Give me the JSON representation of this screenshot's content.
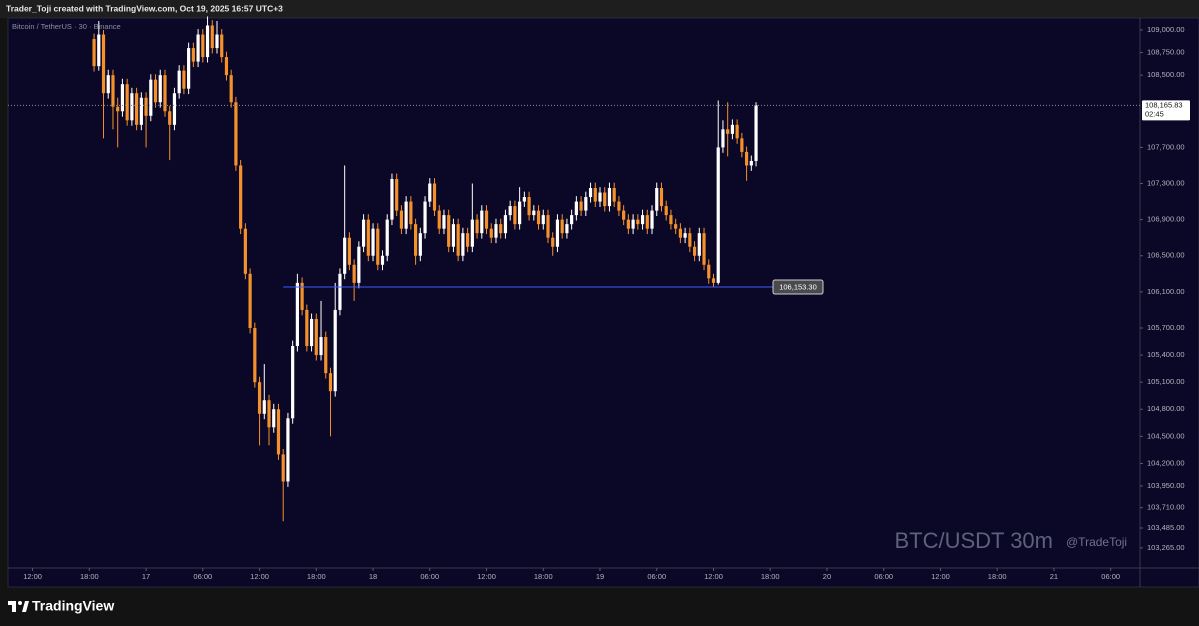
{
  "header": {
    "text": "Trader_Toji created with TradingView.com, Oct 19, 2025 16:57 UTC+3"
  },
  "footer": {
    "brand": "TradingView"
  },
  "chart_data": {
    "type": "candlestick",
    "symbol": "Bitcoin / TetherUS · 30 · Binance",
    "watermark": "BTC/USDT 30m",
    "author": "@TradeToji",
    "up_color": "#ffffff",
    "down_color": "#f5912a",
    "grid": false,
    "xlim": [
      9.4,
      129.1
    ],
    "xticks": [
      {
        "value": 12,
        "label": "12:00"
      },
      {
        "value": 18,
        "label": "18:00"
      },
      {
        "value": 24,
        "label": "17"
      },
      {
        "value": 30,
        "label": "06:00"
      },
      {
        "value": 36,
        "label": "12:00"
      },
      {
        "value": 42,
        "label": "18:00"
      },
      {
        "value": 48,
        "label": "18"
      },
      {
        "value": 54,
        "label": "06:00"
      },
      {
        "value": 60,
        "label": "12:00"
      },
      {
        "value": 66,
        "label": "18:00"
      },
      {
        "value": 72,
        "label": "19"
      },
      {
        "value": 78,
        "label": "06:00"
      },
      {
        "value": 84,
        "label": "12:00"
      },
      {
        "value": 90,
        "label": "18:00"
      },
      {
        "value": 96,
        "label": "20"
      },
      {
        "value": 102,
        "label": "06:00"
      },
      {
        "value": 108,
        "label": "12:00"
      },
      {
        "value": 114,
        "label": "18:00"
      },
      {
        "value": 120,
        "label": "21"
      },
      {
        "value": 126,
        "label": "06:00"
      }
    ],
    "ylim": [
      103042,
      109133
    ],
    "yticks": [
      {
        "value": 109000,
        "label": "109,000.00"
      },
      {
        "value": 108750,
        "label": "108,750.00"
      },
      {
        "value": 108500,
        "label": "108,500.00"
      },
      {
        "value": 107700,
        "label": "107,700.00"
      },
      {
        "value": 107300,
        "label": "107,300.00"
      },
      {
        "value": 106900,
        "label": "106,900.00"
      },
      {
        "value": 106500,
        "label": "106,500.00"
      },
      {
        "value": 106100,
        "label": "106,100.00"
      },
      {
        "value": 105700,
        "label": "105,700.00"
      },
      {
        "value": 105400,
        "label": "105,400.00"
      },
      {
        "value": 105100,
        "label": "105,100.00"
      },
      {
        "value": 104800,
        "label": "104,800.00"
      },
      {
        "value": 104500,
        "label": "104,500.00"
      },
      {
        "value": 104200,
        "label": "104,200.00"
      },
      {
        "value": 103950,
        "label": "103,950.00"
      },
      {
        "value": 103710,
        "label": "103,710.00"
      },
      {
        "value": 103485,
        "label": "103,485.00"
      },
      {
        "value": 103265,
        "label": "103,265.00"
      }
    ],
    "last_price": {
      "value": 108165.83,
      "label": "108,165.83",
      "countdown": "02:45"
    },
    "low_marker": {
      "value": 106153.3,
      "label": "106,153.30"
    },
    "x": [
      18.5,
      19,
      19.5,
      20,
      20.5,
      21,
      21.5,
      22,
      22.5,
      23,
      23.5,
      24,
      24.5,
      25,
      25.5,
      26,
      26.5,
      27,
      27.5,
      28,
      28.5,
      29,
      29.5,
      30,
      30.5,
      31,
      31.5,
      32,
      32.5,
      33,
      33.5,
      34,
      34.5,
      35,
      35.5,
      36,
      36.5,
      37,
      37.5,
      38,
      38.5,
      39,
      39.5,
      40,
      40.5,
      41,
      41.5,
      42,
      42.5,
      43,
      43.5,
      44,
      44.5,
      45,
      45.5,
      46,
      46.5,
      47,
      47.5,
      48,
      48.5,
      49,
      49.5,
      50,
      50.5,
      51,
      51.5,
      52,
      52.5,
      53,
      53.5,
      54,
      54.5,
      55,
      55.5,
      56,
      56.5,
      57,
      57.5,
      58,
      58.5,
      59,
      59.5,
      60,
      60.5,
      61,
      61.5,
      62,
      62.5,
      63,
      63.5,
      64,
      64.5,
      65,
      65.5,
      66,
      66.5,
      67,
      67.5,
      68,
      68.5,
      69,
      69.5,
      70,
      70.5,
      71,
      71.5,
      72,
      72.5,
      73,
      73.5,
      74,
      74.5,
      75,
      75.5,
      76,
      76.5,
      77,
      77.5,
      78,
      78.5,
      79,
      79.5,
      80,
      80.5,
      81,
      81.5,
      82,
      82.5,
      83,
      83.5,
      84,
      84.5,
      85,
      85.5,
      86,
      86.5,
      87,
      87.5,
      88,
      88.5
    ],
    "open": [
      108900,
      108600,
      108950,
      108300,
      108500,
      108150,
      108100,
      108400,
      108000,
      108300,
      107950,
      108250,
      108050,
      108450,
      108200,
      108500,
      108100,
      107950,
      108300,
      108550,
      108350,
      108800,
      108650,
      108950,
      108700,
      109050,
      108800,
      108950,
      108700,
      108500,
      108200,
      107500,
      106800,
      106300,
      105700,
      105100,
      104750,
      104900,
      104600,
      104800,
      104300,
      104000,
      104700,
      105500,
      106200,
      105900,
      105500,
      105800,
      105400,
      105600,
      105200,
      105000,
      105900,
      106300,
      106700,
      106400,
      106200,
      106600,
      106900,
      106500,
      106800,
      106400,
      106500,
      106900,
      107350,
      107000,
      106800,
      107100,
      106850,
      106500,
      106750,
      107100,
      107300,
      107000,
      106800,
      106950,
      106600,
      106850,
      106500,
      106750,
      106600,
      106900,
      106750,
      107000,
      106800,
      106700,
      106850,
      106750,
      106950,
      107050,
      106850,
      107100,
      107150,
      106950,
      107000,
      106850,
      106950,
      106700,
      106600,
      106900,
      106750,
      106850,
      106950,
      107100,
      107000,
      107150,
      107250,
      107100,
      107200,
      107050,
      107250,
      107100,
      107000,
      106900,
      106800,
      106900,
      106850,
      106950,
      106800,
      107000,
      107250,
      107050,
      106950,
      106850,
      106800,
      106700,
      106750,
      106600,
      106500,
      106750,
      106400,
      106250,
      106200,
      107700,
      107900,
      107850,
      107950,
      107800,
      107650,
      107500,
      107550
    ],
    "high": [
      108960,
      109100,
      109000,
      108560,
      108560,
      108250,
      108460,
      108460,
      108360,
      108360,
      108310,
      108310,
      108510,
      108510,
      108560,
      108560,
      108160,
      108360,
      108610,
      108610,
      108860,
      108860,
      109010,
      109010,
      109150,
      109110,
      109100,
      109010,
      108760,
      108560,
      108260,
      107560,
      106860,
      106360,
      105760,
      105160,
      105300,
      104960,
      104860,
      104860,
      104360,
      104760,
      105560,
      106300,
      106260,
      105960,
      105860,
      105860,
      106000,
      105660,
      105260,
      106200,
      106360,
      107500,
      106760,
      106460,
      106660,
      106960,
      106960,
      106860,
      106860,
      106560,
      106960,
      107410,
      107410,
      107060,
      107160,
      107160,
      106910,
      106810,
      107160,
      107360,
      107360,
      107060,
      107010,
      107010,
      106910,
      106910,
      106810,
      106810,
      107300,
      106960,
      107060,
      107060,
      106860,
      106910,
      106910,
      107010,
      107110,
      107110,
      107260,
      107210,
      107210,
      107060,
      107060,
      107010,
      107010,
      106760,
      106960,
      106960,
      106910,
      107010,
      107160,
      107160,
      107210,
      107310,
      107310,
      107260,
      107260,
      107310,
      107310,
      107160,
      107060,
      106960,
      106960,
      106960,
      107010,
      107010,
      107060,
      107310,
      107310,
      107110,
      107010,
      106910,
      106860,
      106810,
      106810,
      106660,
      106810,
      106810,
      106460,
      106300,
      108220,
      108000,
      108200,
      108010,
      108010,
      107860,
      107710,
      107610,
      108200
    ],
    "low": [
      108540,
      108550,
      107800,
      108240,
      107900,
      107700,
      108040,
      107940,
      107940,
      107890,
      107890,
      107700,
      107990,
      108140,
      108140,
      108040,
      107560,
      107890,
      108240,
      108290,
      108290,
      108590,
      108590,
      108640,
      108640,
      108740,
      108740,
      108640,
      108440,
      108140,
      107440,
      106740,
      106240,
      105640,
      105040,
      104400,
      104690,
      104400,
      104540,
      104240,
      103560,
      103940,
      104640,
      105440,
      105840,
      105440,
      105440,
      105340,
      105340,
      105140,
      104500,
      104940,
      105840,
      106240,
      106340,
      106000,
      106140,
      106540,
      106440,
      106440,
      106340,
      106340,
      106440,
      106840,
      106940,
      106740,
      106740,
      106790,
      106400,
      106440,
      106690,
      107040,
      106940,
      106740,
      106740,
      106540,
      106540,
      106440,
      106440,
      106540,
      106540,
      106690,
      106690,
      106740,
      106640,
      106640,
      106690,
      106690,
      106890,
      106790,
      106790,
      107040,
      106890,
      106890,
      106790,
      106790,
      106640,
      106500,
      106540,
      106690,
      106690,
      106790,
      106890,
      106940,
      106940,
      107090,
      107040,
      107040,
      106990,
      106990,
      107040,
      106940,
      106840,
      106740,
      106740,
      106790,
      106790,
      106740,
      106740,
      106940,
      106990,
      106890,
      106790,
      106740,
      106640,
      106640,
      106540,
      106440,
      106440,
      106340,
      106190,
      106153.3,
      106180,
      107640,
      107600,
      107790,
      107740,
      107590,
      107330,
      107440,
      107490
    ],
    "close": [
      108600,
      108950,
      108300,
      108500,
      108150,
      108100,
      108400,
      108000,
      108300,
      107950,
      108250,
      108050,
      108450,
      108200,
      108500,
      108100,
      107950,
      108300,
      108550,
      108350,
      108800,
      108650,
      108950,
      108700,
      109050,
      108800,
      108950,
      108700,
      108500,
      108200,
      107500,
      106800,
      106300,
      105700,
      105100,
      104750,
      104900,
      104600,
      104800,
      104300,
      104000,
      104700,
      105500,
      106200,
      105900,
      105500,
      105800,
      105400,
      105600,
      105200,
      105000,
      105900,
      106300,
      106700,
      106400,
      106200,
      106600,
      106900,
      106500,
      106800,
      106400,
      106500,
      106900,
      107350,
      107000,
      106800,
      107100,
      106850,
      106500,
      106750,
      107100,
      107300,
      107000,
      106800,
      106950,
      106600,
      106850,
      106500,
      106750,
      106600,
      106900,
      106750,
      107000,
      106800,
      106700,
      106850,
      106750,
      106950,
      107050,
      106850,
      107100,
      107150,
      106950,
      107000,
      106850,
      106950,
      106700,
      106600,
      106900,
      106750,
      106850,
      106950,
      107100,
      107000,
      107150,
      107250,
      107100,
      107200,
      107050,
      107250,
      107100,
      107000,
      106900,
      106800,
      106900,
      106850,
      106950,
      106800,
      107000,
      107250,
      107050,
      106950,
      106850,
      106800,
      106700,
      106750,
      106600,
      106500,
      106750,
      106400,
      106250,
      106200,
      107700,
      107900,
      107850,
      107950,
      107800,
      107650,
      107500,
      107550,
      108165.83
    ]
  }
}
